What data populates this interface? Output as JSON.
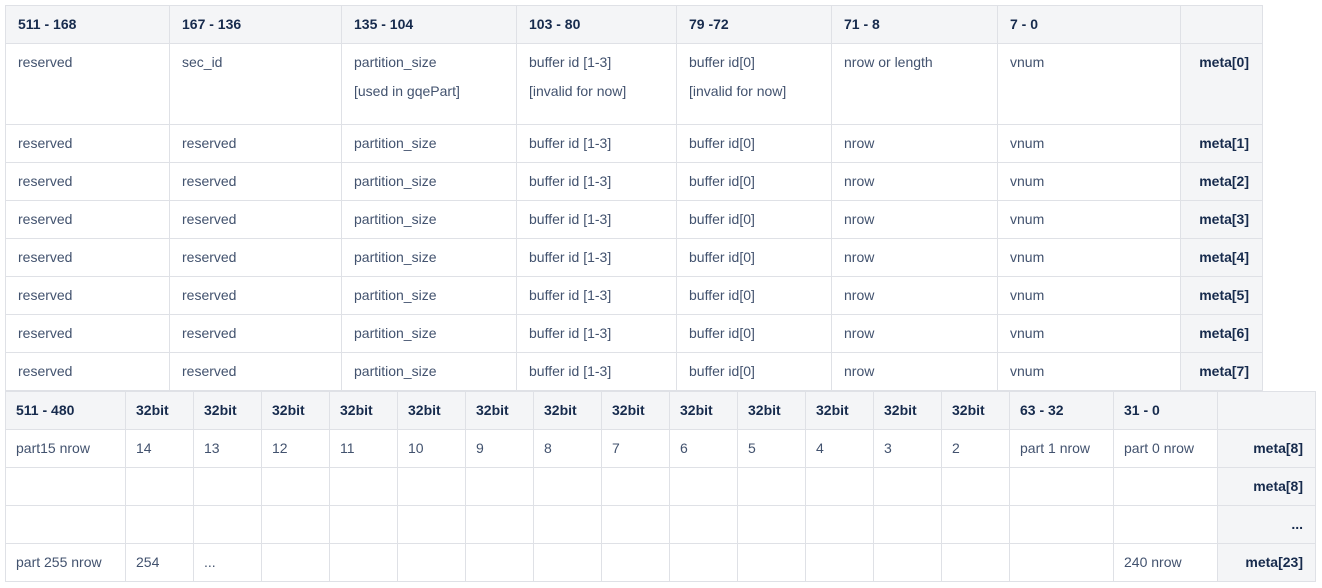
{
  "table1": {
    "headers": [
      "511 - 168",
      "167 - 136",
      "135 - 104",
      "103 - 80",
      "79 -72",
      "71 - 8",
      "7 - 0",
      ""
    ],
    "first_row": {
      "c0": "reserved",
      "c1": "sec_id",
      "c2_line1": "partition_size",
      "c2_line2": "[used in gqePart]",
      "c3_line1": "buffer id [1-3]",
      "c3_line2": "[invalid for now]",
      "c4_line1": "buffer id[0]",
      "c4_line2": "[invalid for now]",
      "c5": "nrow or length",
      "c6": "vnum",
      "meta": "meta[0]"
    },
    "rows": [
      {
        "c0": "reserved",
        "c1": "reserved",
        "c2": "partition_size",
        "c3": "buffer id [1-3]",
        "c4": "buffer id[0]",
        "c5": "nrow",
        "c6": "vnum",
        "meta": "meta[1]"
      },
      {
        "c0": "reserved",
        "c1": "reserved",
        "c2": "partition_size",
        "c3": "buffer id [1-3]",
        "c4": "buffer id[0]",
        "c5": "nrow",
        "c6": "vnum",
        "meta": "meta[2]"
      },
      {
        "c0": "reserved",
        "c1": "reserved",
        "c2": "partition_size",
        "c3": "buffer id [1-3]",
        "c4": "buffer id[0]",
        "c5": "nrow",
        "c6": "vnum",
        "meta": "meta[3]"
      },
      {
        "c0": "reserved",
        "c1": "reserved",
        "c2": "partition_size",
        "c3": "buffer id [1-3]",
        "c4": "buffer id[0]",
        "c5": "nrow",
        "c6": "vnum",
        "meta": "meta[4]"
      },
      {
        "c0": "reserved",
        "c1": "reserved",
        "c2": "partition_size",
        "c3": "buffer id [1-3]",
        "c4": "buffer id[0]",
        "c5": "nrow",
        "c6": "vnum",
        "meta": "meta[5]"
      },
      {
        "c0": "reserved",
        "c1": "reserved",
        "c2": "partition_size",
        "c3": "buffer id [1-3]",
        "c4": "buffer id[0]",
        "c5": "nrow",
        "c6": "vnum",
        "meta": "meta[6]"
      },
      {
        "c0": "reserved",
        "c1": "reserved",
        "c2": "partition_size",
        "c3": "buffer id [1-3]",
        "c4": "buffer id[0]",
        "c5": "nrow",
        "c6": "vnum",
        "meta": "meta[7]"
      }
    ]
  },
  "table2": {
    "headers": [
      "511 - 480",
      "32bit",
      "32bit",
      "32bit",
      "32bit",
      "32bit",
      "32bit",
      "32bit",
      "32bit",
      "32bit",
      "32bit",
      "32bit",
      "32bit",
      "32bit",
      "63 - 32",
      "31 - 0",
      ""
    ],
    "rows": [
      {
        "cells": [
          "part15 nrow",
          "14",
          "13",
          "12",
          "11",
          "10",
          "9",
          "8",
          "7",
          "6",
          "5",
          "4",
          "3",
          "2",
          "part 1 nrow",
          "part 0 nrow"
        ],
        "meta": "meta[8]"
      },
      {
        "cells": [
          "",
          "",
          "",
          "",
          "",
          "",
          "",
          "",
          "",
          "",
          "",
          "",
          "",
          "",
          "",
          ""
        ],
        "meta": "meta[8]"
      },
      {
        "cells": [
          "",
          "",
          "",
          "",
          "",
          "",
          "",
          "",
          "",
          "",
          "",
          "",
          "",
          "",
          "",
          ""
        ],
        "meta": "..."
      },
      {
        "cells": [
          "part 255 nrow",
          "254",
          "...",
          "",
          "",
          "",
          "",
          "",
          "",
          "",
          "",
          "",
          "",
          "",
          "",
          "240 nrow"
        ],
        "meta": "meta[23]"
      }
    ]
  }
}
